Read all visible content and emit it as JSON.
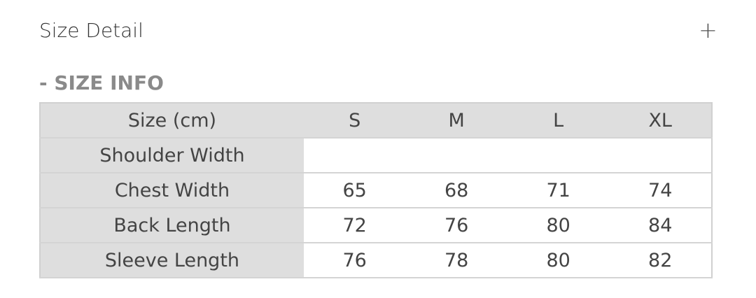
{
  "header": {
    "title": "Size Detail",
    "expand_icon": "plus-icon"
  },
  "section": {
    "title": "- SIZE INFO"
  },
  "table": {
    "columns": [
      "Size (cm)",
      "S",
      "M",
      "L",
      "XL"
    ],
    "rows": [
      {
        "label": "Shoulder Width",
        "values": [
          "",
          "",
          "",
          ""
        ]
      },
      {
        "label": "Chest Width",
        "values": [
          "65",
          "68",
          "71",
          "74"
        ]
      },
      {
        "label": "Back Length",
        "values": [
          "72",
          "76",
          "80",
          "84"
        ]
      },
      {
        "label": "Sleeve Length",
        "values": [
          "76",
          "78",
          "80",
          "82"
        ]
      }
    ]
  }
}
